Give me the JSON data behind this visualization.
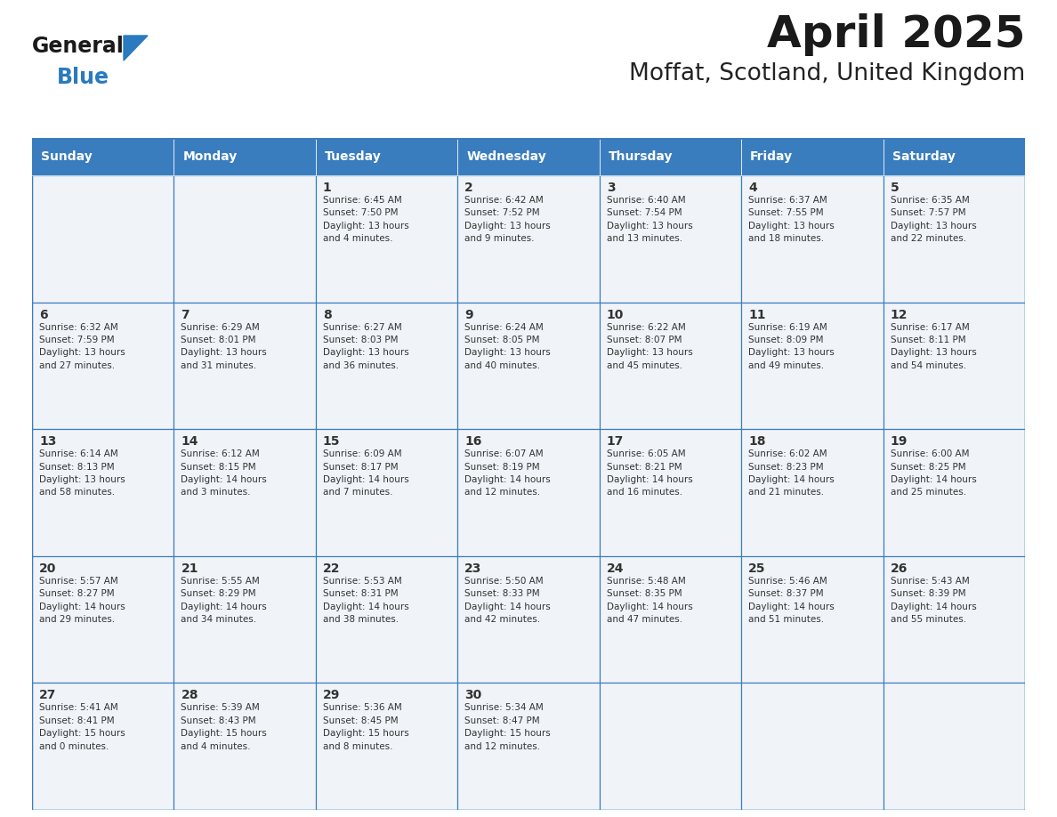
{
  "title": "April 2025",
  "subtitle": "Moffat, Scotland, United Kingdom",
  "days_of_week": [
    "Sunday",
    "Monday",
    "Tuesday",
    "Wednesday",
    "Thursday",
    "Friday",
    "Saturday"
  ],
  "header_bg": "#3a7dbf",
  "header_text": "#ffffff",
  "cell_bg": "#f0f4f8",
  "cell_text": "#333333",
  "border_color": "#3a7dbf",
  "title_color": "#1a1a1a",
  "subtitle_color": "#222222",
  "logo_general_color": "#1a1a1a",
  "logo_blue_color": "#2a7abf",
  "weeks": [
    [
      {
        "day": null,
        "text": ""
      },
      {
        "day": null,
        "text": ""
      },
      {
        "day": 1,
        "text": "Sunrise: 6:45 AM\nSunset: 7:50 PM\nDaylight: 13 hours\nand 4 minutes."
      },
      {
        "day": 2,
        "text": "Sunrise: 6:42 AM\nSunset: 7:52 PM\nDaylight: 13 hours\nand 9 minutes."
      },
      {
        "day": 3,
        "text": "Sunrise: 6:40 AM\nSunset: 7:54 PM\nDaylight: 13 hours\nand 13 minutes."
      },
      {
        "day": 4,
        "text": "Sunrise: 6:37 AM\nSunset: 7:55 PM\nDaylight: 13 hours\nand 18 minutes."
      },
      {
        "day": 5,
        "text": "Sunrise: 6:35 AM\nSunset: 7:57 PM\nDaylight: 13 hours\nand 22 minutes."
      }
    ],
    [
      {
        "day": 6,
        "text": "Sunrise: 6:32 AM\nSunset: 7:59 PM\nDaylight: 13 hours\nand 27 minutes."
      },
      {
        "day": 7,
        "text": "Sunrise: 6:29 AM\nSunset: 8:01 PM\nDaylight: 13 hours\nand 31 minutes."
      },
      {
        "day": 8,
        "text": "Sunrise: 6:27 AM\nSunset: 8:03 PM\nDaylight: 13 hours\nand 36 minutes."
      },
      {
        "day": 9,
        "text": "Sunrise: 6:24 AM\nSunset: 8:05 PM\nDaylight: 13 hours\nand 40 minutes."
      },
      {
        "day": 10,
        "text": "Sunrise: 6:22 AM\nSunset: 8:07 PM\nDaylight: 13 hours\nand 45 minutes."
      },
      {
        "day": 11,
        "text": "Sunrise: 6:19 AM\nSunset: 8:09 PM\nDaylight: 13 hours\nand 49 minutes."
      },
      {
        "day": 12,
        "text": "Sunrise: 6:17 AM\nSunset: 8:11 PM\nDaylight: 13 hours\nand 54 minutes."
      }
    ],
    [
      {
        "day": 13,
        "text": "Sunrise: 6:14 AM\nSunset: 8:13 PM\nDaylight: 13 hours\nand 58 minutes."
      },
      {
        "day": 14,
        "text": "Sunrise: 6:12 AM\nSunset: 8:15 PM\nDaylight: 14 hours\nand 3 minutes."
      },
      {
        "day": 15,
        "text": "Sunrise: 6:09 AM\nSunset: 8:17 PM\nDaylight: 14 hours\nand 7 minutes."
      },
      {
        "day": 16,
        "text": "Sunrise: 6:07 AM\nSunset: 8:19 PM\nDaylight: 14 hours\nand 12 minutes."
      },
      {
        "day": 17,
        "text": "Sunrise: 6:05 AM\nSunset: 8:21 PM\nDaylight: 14 hours\nand 16 minutes."
      },
      {
        "day": 18,
        "text": "Sunrise: 6:02 AM\nSunset: 8:23 PM\nDaylight: 14 hours\nand 21 minutes."
      },
      {
        "day": 19,
        "text": "Sunrise: 6:00 AM\nSunset: 8:25 PM\nDaylight: 14 hours\nand 25 minutes."
      }
    ],
    [
      {
        "day": 20,
        "text": "Sunrise: 5:57 AM\nSunset: 8:27 PM\nDaylight: 14 hours\nand 29 minutes."
      },
      {
        "day": 21,
        "text": "Sunrise: 5:55 AM\nSunset: 8:29 PM\nDaylight: 14 hours\nand 34 minutes."
      },
      {
        "day": 22,
        "text": "Sunrise: 5:53 AM\nSunset: 8:31 PM\nDaylight: 14 hours\nand 38 minutes."
      },
      {
        "day": 23,
        "text": "Sunrise: 5:50 AM\nSunset: 8:33 PM\nDaylight: 14 hours\nand 42 minutes."
      },
      {
        "day": 24,
        "text": "Sunrise: 5:48 AM\nSunset: 8:35 PM\nDaylight: 14 hours\nand 47 minutes."
      },
      {
        "day": 25,
        "text": "Sunrise: 5:46 AM\nSunset: 8:37 PM\nDaylight: 14 hours\nand 51 minutes."
      },
      {
        "day": 26,
        "text": "Sunrise: 5:43 AM\nSunset: 8:39 PM\nDaylight: 14 hours\nand 55 minutes."
      }
    ],
    [
      {
        "day": 27,
        "text": "Sunrise: 5:41 AM\nSunset: 8:41 PM\nDaylight: 15 hours\nand 0 minutes."
      },
      {
        "day": 28,
        "text": "Sunrise: 5:39 AM\nSunset: 8:43 PM\nDaylight: 15 hours\nand 4 minutes."
      },
      {
        "day": 29,
        "text": "Sunrise: 5:36 AM\nSunset: 8:45 PM\nDaylight: 15 hours\nand 8 minutes."
      },
      {
        "day": 30,
        "text": "Sunrise: 5:34 AM\nSunset: 8:47 PM\nDaylight: 15 hours\nand 12 minutes."
      },
      {
        "day": null,
        "text": ""
      },
      {
        "day": null,
        "text": ""
      },
      {
        "day": null,
        "text": ""
      }
    ]
  ]
}
